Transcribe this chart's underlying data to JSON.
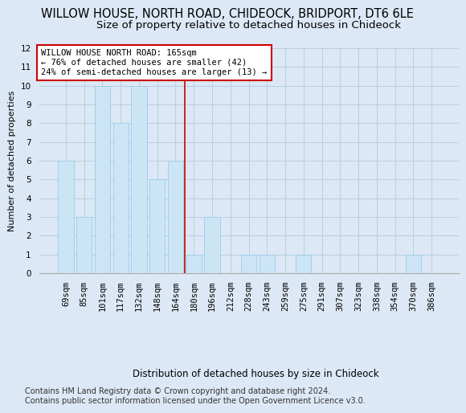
{
  "title": "WILLOW HOUSE, NORTH ROAD, CHIDEOCK, BRIDPORT, DT6 6LE",
  "subtitle": "Size of property relative to detached houses in Chideock",
  "xlabel_bottom": "Distribution of detached houses by size in Chideock",
  "ylabel": "Number of detached properties",
  "categories": [
    "69sqm",
    "85sqm",
    "101sqm",
    "117sqm",
    "132sqm",
    "148sqm",
    "164sqm",
    "180sqm",
    "196sqm",
    "212sqm",
    "228sqm",
    "243sqm",
    "259sqm",
    "275sqm",
    "291sqm",
    "307sqm",
    "323sqm",
    "338sqm",
    "354sqm",
    "370sqm",
    "386sqm"
  ],
  "values": [
    6,
    3,
    10,
    8,
    10,
    5,
    6,
    1,
    3,
    0,
    1,
    1,
    0,
    1,
    0,
    0,
    0,
    0,
    0,
    1,
    0
  ],
  "bar_color": "#cce5f5",
  "bar_edge_color": "#99ccee",
  "highlight_line_color": "#cc0000",
  "annotation_line1": "WILLOW HOUSE NORTH ROAD: 165sqm",
  "annotation_line2": "← 76% of detached houses are smaller (42)",
  "annotation_line3": "24% of semi-detached houses are larger (13) →",
  "annotation_box_facecolor": "#ffffff",
  "annotation_box_edgecolor": "#cc0000",
  "ylim": [
    0,
    12
  ],
  "yticks": [
    0,
    1,
    2,
    3,
    4,
    5,
    6,
    7,
    8,
    9,
    10,
    11,
    12
  ],
  "footer": "Contains HM Land Registry data © Crown copyright and database right 2024.\nContains public sector information licensed under the Open Government Licence v3.0.",
  "bg_color": "#dce8f5",
  "grid_color": "#b8cfe0",
  "title_fontsize": 10.5,
  "subtitle_fontsize": 9.5,
  "axis_fontsize": 8,
  "tick_fontsize": 7.5,
  "footer_fontsize": 7,
  "annotation_fontsize": 7.5,
  "xlabel_bottom_fontsize": 8.5
}
